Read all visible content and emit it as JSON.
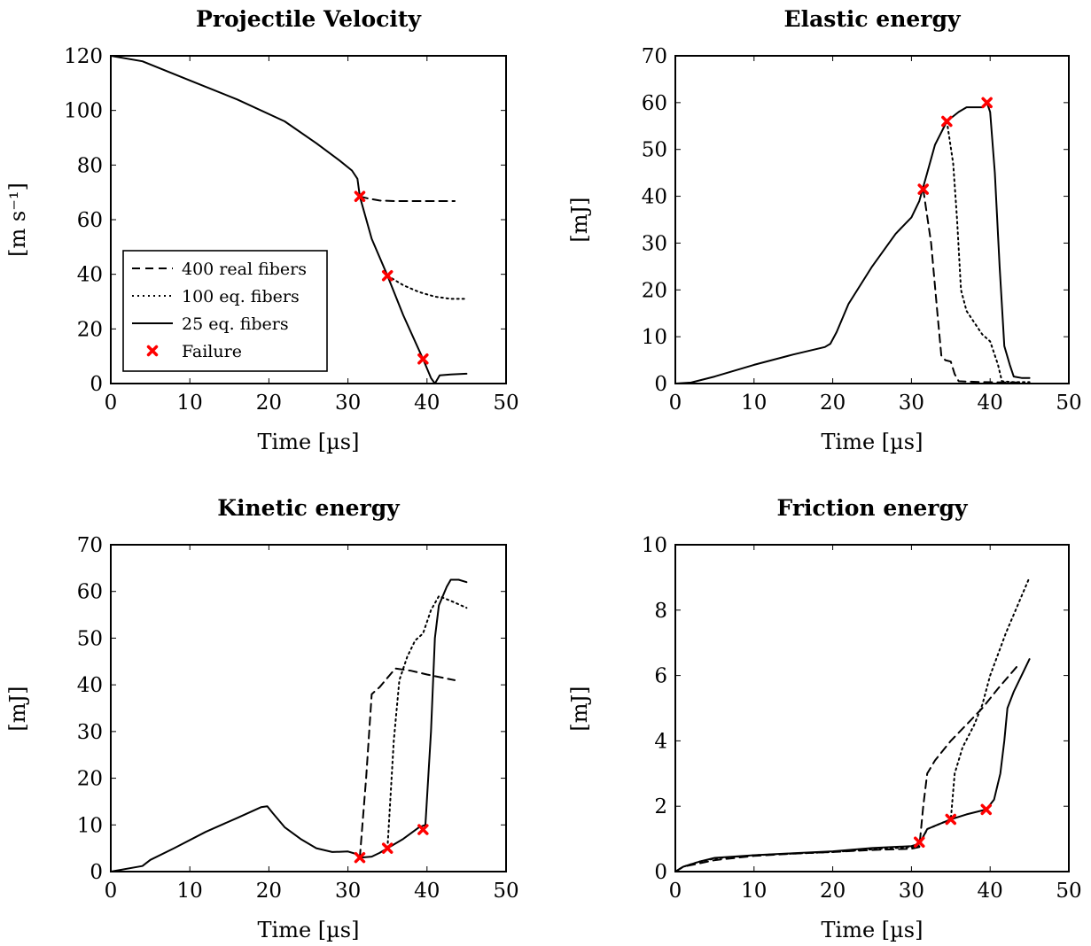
{
  "colors": {
    "line": "#000000",
    "failure_marker": "#ff0000",
    "background": "#ffffff"
  },
  "legend": {
    "items": [
      {
        "label": "400 real fibers",
        "style": "dashed"
      },
      {
        "label": "100 eq. fibers",
        "style": "dotted"
      },
      {
        "label": "25 eq. fibers",
        "style": "solid"
      },
      {
        "label": "Failure",
        "style": "marker"
      }
    ],
    "placement": "lower-left of Projectile Velocity panel"
  },
  "chart_data": [
    {
      "type": "line",
      "title": "Projectile Velocity",
      "xlabel": "Time [µs]",
      "ylabel": "[m s⁻¹]",
      "xlim": [
        0,
        50
      ],
      "ylim": [
        0,
        120
      ],
      "xticks": [
        0,
        10,
        20,
        30,
        40,
        50
      ],
      "yticks": [
        0,
        20,
        40,
        60,
        80,
        100,
        120
      ],
      "series": [
        {
          "name": "400 real fibers",
          "style": "dashed",
          "points": [
            [
              31.5,
              68.5
            ],
            [
              32.5,
              67.8
            ],
            [
              34,
              67
            ],
            [
              36,
              66.8
            ],
            [
              40,
              66.8
            ],
            [
              43.5,
              66.8
            ]
          ]
        },
        {
          "name": "100 eq. fibers",
          "style": "dotted",
          "points": [
            [
              35,
              39.5
            ],
            [
              37,
              36
            ],
            [
              39,
              33.5
            ],
            [
              41,
              31.8
            ],
            [
              43,
              31
            ],
            [
              45,
              31
            ]
          ]
        },
        {
          "name": "25 eq. fibers",
          "style": "solid",
          "points": [
            [
              0,
              120
            ],
            [
              4,
              118
            ],
            [
              10,
              111
            ],
            [
              16,
              104
            ],
            [
              22,
              96
            ],
            [
              26,
              88
            ],
            [
              29,
              81.5
            ],
            [
              30.5,
              78
            ],
            [
              31.2,
              75
            ],
            [
              31.5,
              68.5
            ],
            [
              33,
              53
            ],
            [
              35,
              39.5
            ],
            [
              37,
              25
            ],
            [
              39.5,
              9
            ],
            [
              40.5,
              2
            ],
            [
              41,
              0
            ],
            [
              41.6,
              3
            ],
            [
              43,
              3.3
            ],
            [
              45,
              3.6
            ]
          ]
        }
      ],
      "failure_points": [
        [
          31.5,
          68.5
        ],
        [
          35,
          39.5
        ],
        [
          39.5,
          9
        ]
      ]
    },
    {
      "type": "line",
      "title": "Elastic energy",
      "xlabel": "Time [µs]",
      "ylabel": "[mJ]",
      "xlim": [
        0,
        50
      ],
      "ylim": [
        0,
        70
      ],
      "xticks": [
        0,
        10,
        20,
        30,
        40,
        50
      ],
      "yticks": [
        0,
        10,
        20,
        30,
        40,
        50,
        60,
        70
      ],
      "series": [
        {
          "name": "400 real fibers",
          "style": "dashed",
          "points": [
            [
              31.5,
              41.5
            ],
            [
              32.5,
              30
            ],
            [
              33.3,
              15
            ],
            [
              33.8,
              6
            ],
            [
              34.3,
              5
            ],
            [
              35,
              4.7
            ],
            [
              35.5,
              2
            ],
            [
              36,
              0.5
            ],
            [
              39,
              0.3
            ],
            [
              44,
              0.2
            ]
          ]
        },
        {
          "name": "100 eq. fibers",
          "style": "dotted",
          "points": [
            [
              34.5,
              56
            ],
            [
              35.3,
              47
            ],
            [
              35.8,
              35
            ],
            [
              36.3,
              20
            ],
            [
              37,
              15.5
            ],
            [
              38,
              13
            ],
            [
              39,
              10.5
            ],
            [
              40,
              9
            ],
            [
              41,
              4
            ],
            [
              41.5,
              0.5
            ],
            [
              43,
              0.3
            ],
            [
              45,
              0.3
            ]
          ]
        },
        {
          "name": "25 eq. fibers",
          "style": "solid",
          "points": [
            [
              0,
              0
            ],
            [
              2,
              0.2
            ],
            [
              5,
              1.5
            ],
            [
              10,
              4
            ],
            [
              15,
              6.2
            ],
            [
              19,
              7.8
            ],
            [
              19.7,
              8.5
            ],
            [
              20.5,
              11
            ],
            [
              22,
              17
            ],
            [
              25,
              25
            ],
            [
              28,
              32
            ],
            [
              30,
              35.5
            ],
            [
              31,
              39
            ],
            [
              32,
              45
            ],
            [
              33,
              51
            ],
            [
              34.5,
              56
            ],
            [
              36,
              58
            ],
            [
              37,
              59
            ],
            [
              38,
              59
            ],
            [
              39,
              59
            ],
            [
              39.6,
              60
            ],
            [
              40,
              58
            ],
            [
              40.6,
              45
            ],
            [
              41.2,
              25
            ],
            [
              41.8,
              8
            ],
            [
              42.5,
              4
            ],
            [
              43,
              1.5
            ],
            [
              44,
              1.2
            ],
            [
              45,
              1.2
            ]
          ]
        }
      ],
      "failure_points": [
        [
          31.5,
          41.5
        ],
        [
          34.5,
          56
        ],
        [
          39.6,
          60
        ]
      ]
    },
    {
      "type": "line",
      "title": "Kinetic energy",
      "xlabel": "Time [µs]",
      "ylabel": "[mJ]",
      "xlim": [
        0,
        50
      ],
      "ylim": [
        0,
        70
      ],
      "xticks": [
        0,
        10,
        20,
        30,
        40,
        50
      ],
      "yticks": [
        0,
        10,
        20,
        30,
        40,
        50,
        60,
        70
      ],
      "series": [
        {
          "name": "400 real fibers",
          "style": "dashed",
          "points": [
            [
              31.5,
              3
            ],
            [
              32.3,
              20
            ],
            [
              33,
              38
            ],
            [
              34,
              39.5
            ],
            [
              35,
              41.5
            ],
            [
              36,
              43.5
            ],
            [
              38,
              43
            ],
            [
              40,
              42.2
            ],
            [
              43.5,
              41
            ]
          ]
        },
        {
          "name": "100 eq. fibers",
          "style": "dotted",
          "points": [
            [
              35,
              5
            ],
            [
              35.8,
              28
            ],
            [
              36.5,
              41
            ],
            [
              37.5,
              46
            ],
            [
              38.5,
              49.5
            ],
            [
              39.5,
              51
            ],
            [
              40.5,
              56
            ],
            [
              41.5,
              59
            ],
            [
              43,
              58
            ],
            [
              45,
              56.5
            ]
          ]
        },
        {
          "name": "25 eq. fibers",
          "style": "solid",
          "points": [
            [
              0,
              0
            ],
            [
              4,
              1.2
            ],
            [
              5,
              2.5
            ],
            [
              8,
              5
            ],
            [
              12,
              8.5
            ],
            [
              16,
              11.5
            ],
            [
              19,
              13.8
            ],
            [
              19.8,
              14
            ],
            [
              20.5,
              12.5
            ],
            [
              22,
              9.5
            ],
            [
              24,
              7
            ],
            [
              26,
              5
            ],
            [
              28,
              4.2
            ],
            [
              30,
              4.3
            ],
            [
              31,
              3.8
            ],
            [
              31.5,
              3
            ],
            [
              33,
              3.2
            ],
            [
              34,
              4
            ],
            [
              35,
              5
            ],
            [
              37,
              7
            ],
            [
              39,
              9.5
            ],
            [
              39.8,
              10
            ],
            [
              40.5,
              30
            ],
            [
              41,
              50
            ],
            [
              41.5,
              57
            ],
            [
              42.5,
              61
            ],
            [
              43,
              62.5
            ],
            [
              44,
              62.5
            ],
            [
              45,
              62
            ]
          ]
        }
      ],
      "failure_points": [
        [
          31.5,
          3
        ],
        [
          35,
          5
        ],
        [
          39.5,
          9
        ]
      ]
    },
    {
      "type": "line",
      "title": "Friction energy",
      "xlabel": "Time [µs]",
      "ylabel": "[mJ]",
      "xlim": [
        0,
        50
      ],
      "ylim": [
        0,
        10
      ],
      "xticks": [
        0,
        10,
        20,
        30,
        40,
        50
      ],
      "yticks": [
        0,
        2,
        4,
        6,
        8,
        10
      ],
      "series": [
        {
          "name": "400 real fibers",
          "style": "dashed",
          "points": [
            [
              0,
              0
            ],
            [
              1,
              0.15
            ],
            [
              3,
              0.25
            ],
            [
              5,
              0.35
            ],
            [
              10,
              0.48
            ],
            [
              15,
              0.55
            ],
            [
              20,
              0.6
            ],
            [
              25,
              0.66
            ],
            [
              30,
              0.7
            ],
            [
              31,
              0.75
            ],
            [
              31.5,
              2
            ],
            [
              32,
              3
            ],
            [
              33,
              3.4
            ],
            [
              35,
              4
            ],
            [
              37,
              4.5
            ],
            [
              39,
              5
            ],
            [
              41,
              5.6
            ],
            [
              43.5,
              6.3
            ]
          ]
        },
        {
          "name": "100 eq. fibers",
          "style": "dotted",
          "points": [
            [
              0,
              0
            ],
            [
              1,
              0.15
            ],
            [
              3,
              0.3
            ],
            [
              5,
              0.4
            ],
            [
              10,
              0.5
            ],
            [
              15,
              0.55
            ],
            [
              20,
              0.6
            ],
            [
              25,
              0.68
            ],
            [
              30,
              0.75
            ],
            [
              31,
              0.8
            ],
            [
              32,
              1.3
            ],
            [
              35,
              1.6
            ],
            [
              35.5,
              3
            ],
            [
              36.5,
              3.8
            ],
            [
              38,
              4.5
            ],
            [
              39,
              5.1
            ],
            [
              40,
              6
            ],
            [
              42,
              7.3
            ],
            [
              45,
              9
            ]
          ]
        },
        {
          "name": "25 eq. fibers",
          "style": "solid",
          "points": [
            [
              0,
              0
            ],
            [
              1,
              0.15
            ],
            [
              3,
              0.3
            ],
            [
              5,
              0.42
            ],
            [
              10,
              0.5
            ],
            [
              15,
              0.56
            ],
            [
              20,
              0.62
            ],
            [
              25,
              0.72
            ],
            [
              30,
              0.78
            ],
            [
              31,
              0.85
            ],
            [
              32,
              1.3
            ],
            [
              33,
              1.4
            ],
            [
              35,
              1.6
            ],
            [
              37,
              1.75
            ],
            [
              39.5,
              1.9
            ],
            [
              40.5,
              2.2
            ],
            [
              41.3,
              3
            ],
            [
              41.8,
              4
            ],
            [
              42.2,
              5
            ],
            [
              43,
              5.5
            ],
            [
              44,
              6
            ],
            [
              45,
              6.5
            ]
          ]
        }
      ],
      "failure_points": [
        [
          31,
          0.9
        ],
        [
          35,
          1.6
        ],
        [
          39.5,
          1.9
        ]
      ]
    }
  ]
}
